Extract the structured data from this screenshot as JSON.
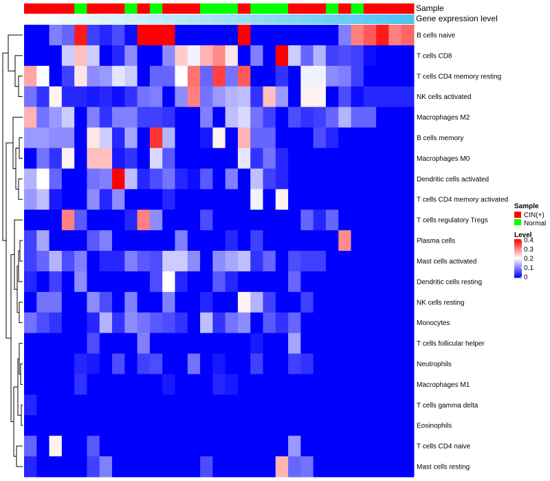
{
  "chart_data": {
    "type": "heatmap",
    "annotation_labels": [
      "Sample",
      "Gene expression level"
    ],
    "sample_groups": [
      "C",
      "C",
      "C",
      "C",
      "N",
      "C",
      "C",
      "C",
      "N",
      "C",
      "N",
      "C",
      "C",
      "C",
      "N",
      "N",
      "N",
      "C",
      "N",
      "N",
      "N",
      "C",
      "C",
      "C",
      "N",
      "C",
      "N",
      "C",
      "C",
      "C",
      "C"
    ],
    "expression_gradient": [
      "#ffffff",
      "#4dc3f2"
    ],
    "rows": [
      "B cells naive",
      "T cells CD8",
      "T cells CD4 memory resting",
      "NK cells activated",
      "Macrophages M2",
      "B cells memory",
      "Macrophages M0",
      "Dendritic cells activated",
      "T cells CD4 memory activated",
      "T cells regulatory  Tregs",
      "Plasma cells",
      "Mast cells activated",
      "Dendritic cells resting",
      "NK cells resting",
      "Monocytes",
      "T cells follicular helper",
      "Neutrophils",
      "Macrophages M1",
      "T cells gamma delta",
      "Eosinophils",
      "T cells CD4 naive",
      "Mast cells resting"
    ],
    "matrix": [
      [
        0.0,
        0.0,
        0.1,
        0.08,
        0.38,
        0.05,
        0.03,
        0.06,
        0.01,
        0.4,
        0.4,
        0.4,
        0.0,
        0.0,
        0.0,
        0.0,
        0.0,
        0.4,
        0.0,
        0.0,
        0.0,
        0.0,
        0.0,
        0.0,
        0.0,
        0.1,
        0.3,
        0.33,
        0.38,
        0.3,
        0.32
      ],
      [
        0.0,
        0.0,
        0.0,
        0.16,
        0.25,
        0.16,
        0.0,
        0.03,
        0.11,
        0.0,
        0.0,
        0.11,
        0.24,
        0.19,
        0.26,
        0.29,
        0.22,
        0.0,
        0.1,
        0.0,
        0.4,
        0.16,
        0.08,
        0.14,
        0.05,
        0.06,
        0.05,
        0.01,
        0.0,
        0.0,
        0.0
      ],
      [
        0.27,
        0.2,
        0.0,
        0.05,
        0.22,
        0.11,
        0.12,
        0.18,
        0.16,
        0.0,
        0.08,
        0.08,
        0.2,
        0.31,
        0.08,
        0.35,
        0.09,
        0.33,
        0.0,
        0.0,
        0.04,
        0.0,
        0.19,
        0.19,
        0.11,
        0.1,
        0.05,
        0.0,
        0.0,
        0.0,
        0.0
      ],
      [
        0.09,
        0.04,
        0.21,
        0.03,
        0.03,
        0.02,
        0.03,
        0.01,
        0.04,
        0.09,
        0.1,
        0.0,
        0.11,
        0.3,
        0.09,
        0.12,
        0.14,
        0.15,
        0.04,
        0.25,
        0.12,
        0.0,
        0.21,
        0.21,
        0.0,
        0.06,
        0.01,
        0.03,
        0.03,
        0.03,
        0.03
      ],
      [
        0.26,
        0.09,
        0.12,
        0.16,
        0.0,
        0.1,
        0.04,
        0.1,
        0.1,
        0.05,
        0.05,
        0.04,
        0.0,
        0.0,
        0.1,
        0.0,
        0.15,
        0.17,
        0.09,
        0.05,
        0.0,
        0.06,
        0.04,
        0.05,
        0.08,
        0.14,
        0.08,
        0.08,
        0.0,
        0.0,
        0.0
      ],
      [
        0.12,
        0.12,
        0.11,
        0.11,
        0.0,
        0.22,
        0.16,
        0.03,
        0.13,
        0.0,
        0.36,
        0.14,
        0.0,
        0.0,
        0.02,
        0.21,
        0.0,
        0.26,
        0.08,
        0.08,
        0.0,
        0.0,
        0.0,
        0.06,
        0.03,
        0.0,
        0.0,
        0.0,
        0.0,
        0.0,
        0.0
      ],
      [
        0.0,
        0.09,
        0.04,
        0.21,
        0.0,
        0.25,
        0.25,
        0.02,
        0.04,
        0.0,
        0.17,
        0.07,
        0.0,
        0.0,
        0.0,
        0.0,
        0.0,
        0.18,
        0.04,
        0.09,
        0.03,
        0.0,
        0.0,
        0.0,
        0.0,
        0.0,
        0.0,
        0.0,
        0.0,
        0.0,
        0.0
      ],
      [
        0.14,
        0.2,
        0.08,
        0.0,
        0.0,
        0.09,
        0.1,
        0.4,
        0.15,
        0.03,
        0.06,
        0.09,
        0.03,
        0.01,
        0.07,
        0.0,
        0.1,
        0.0,
        0.15,
        0.05,
        0.03,
        0.0,
        0.0,
        0.0,
        0.0,
        0.0,
        0.0,
        0.0,
        0.0,
        0.0,
        0.0
      ],
      [
        0.12,
        0.15,
        0.02,
        0.0,
        0.0,
        0.11,
        0.03,
        0.11,
        0.0,
        0.0,
        0.0,
        0.03,
        0.0,
        0.0,
        0.0,
        0.0,
        0.0,
        0.0,
        0.19,
        0.0,
        0.21,
        0.0,
        0.0,
        0.0,
        0.0,
        0.0,
        0.0,
        0.0,
        0.0,
        0.0,
        0.0
      ],
      [
        0.0,
        0.0,
        0.0,
        0.3,
        0.07,
        0.0,
        0.0,
        0.0,
        0.03,
        0.3,
        0.11,
        0.0,
        0.0,
        0.0,
        0.06,
        0.0,
        0.0,
        0.0,
        0.0,
        0.0,
        0.0,
        0.0,
        0.08,
        0.03,
        0.08,
        0.0,
        0.0,
        0.0,
        0.0,
        0.0,
        0.0
      ],
      [
        0.05,
        0.13,
        0.0,
        0.0,
        0.0,
        0.07,
        0.1,
        0.0,
        0.0,
        0.0,
        0.0,
        0.0,
        0.1,
        0.0,
        0.0,
        0.0,
        0.03,
        0.0,
        0.05,
        0.0,
        0.0,
        0.0,
        0.0,
        0.0,
        0.0,
        0.29,
        0.0,
        0.0,
        0.0,
        0.0,
        0.0
      ],
      [
        0.05,
        0.08,
        0.14,
        0.06,
        0.1,
        0.0,
        0.03,
        0.03,
        0.1,
        0.07,
        0.06,
        0.16,
        0.16,
        0.11,
        0.0,
        0.11,
        0.13,
        0.15,
        0.04,
        0.08,
        0.0,
        0.06,
        0.05,
        0.05,
        0.0,
        0.0,
        0.0,
        0.0,
        0.0,
        0.0,
        0.0
      ],
      [
        0.03,
        0.0,
        0.05,
        0.0,
        0.11,
        0.0,
        0.0,
        0.0,
        0.0,
        0.0,
        0.06,
        0.2,
        0.03,
        0.0,
        0.0,
        0.07,
        0.03,
        0.0,
        0.0,
        0.0,
        0.0,
        0.08,
        0.0,
        0.0,
        0.0,
        0.0,
        0.0,
        0.0,
        0.0,
        0.0,
        0.0
      ],
      [
        0.0,
        0.09,
        0.09,
        0.0,
        0.0,
        0.11,
        0.06,
        0.0,
        0.1,
        0.0,
        0.0,
        0.1,
        0.0,
        0.0,
        0.03,
        0.0,
        0.0,
        0.21,
        0.14,
        0.05,
        0.0,
        0.0,
        0.05,
        0.0,
        0.0,
        0.0,
        0.0,
        0.0,
        0.0,
        0.0,
        0.0
      ],
      [
        0.09,
        0.06,
        0.04,
        0.0,
        0.0,
        0.03,
        0.14,
        0.04,
        0.11,
        0.09,
        0.07,
        0.06,
        0.04,
        0.0,
        0.15,
        0.04,
        0.09,
        0.11,
        0.0,
        0.07,
        0.04,
        0.08,
        0.0,
        0.0,
        0.0,
        0.0,
        0.0,
        0.0,
        0.0,
        0.0,
        0.0
      ],
      [
        0.0,
        0.0,
        0.0,
        0.0,
        0.0,
        0.06,
        0.0,
        0.0,
        0.0,
        0.1,
        0.0,
        0.0,
        0.0,
        0.0,
        0.0,
        0.0,
        0.0,
        0.0,
        0.02,
        0.0,
        0.0,
        0.13,
        0.0,
        0.0,
        0.0,
        0.0,
        0.0,
        0.0,
        0.0,
        0.0,
        0.0
      ],
      [
        0.0,
        0.0,
        0.0,
        0.0,
        0.03,
        0.02,
        0.0,
        0.06,
        0.0,
        0.05,
        0.06,
        0.0,
        0.0,
        0.09,
        0.0,
        0.02,
        0.0,
        0.0,
        0.05,
        0.0,
        0.0,
        0.05,
        0.04,
        0.0,
        0.0,
        0.0,
        0.0,
        0.0,
        0.0,
        0.0,
        0.0
      ],
      [
        0.0,
        0.0,
        0.0,
        0.0,
        0.04,
        0.0,
        0.0,
        0.0,
        0.0,
        0.0,
        0.0,
        0.02,
        0.0,
        0.0,
        0.0,
        0.03,
        0.02,
        0.0,
        0.0,
        0.0,
        0.0,
        0.0,
        0.0,
        0.0,
        0.0,
        0.0,
        0.0,
        0.0,
        0.0,
        0.0,
        0.0
      ],
      [
        0.03,
        0.0,
        0.0,
        0.0,
        0.0,
        0.0,
        0.0,
        0.0,
        0.0,
        0.0,
        0.0,
        0.0,
        0.0,
        0.0,
        0.0,
        0.0,
        0.0,
        0.0,
        0.0,
        0.0,
        0.0,
        0.0,
        0.0,
        0.0,
        0.0,
        0.0,
        0.0,
        0.0,
        0.0,
        0.0,
        0.0
      ],
      [
        0.0,
        0.0,
        0.0,
        0.0,
        0.0,
        0.0,
        0.0,
        0.0,
        0.0,
        0.0,
        0.0,
        0.0,
        0.0,
        0.0,
        0.0,
        0.0,
        0.0,
        0.0,
        0.0,
        0.0,
        0.0,
        0.0,
        0.0,
        0.0,
        0.0,
        0.0,
        0.0,
        0.0,
        0.0,
        0.0,
        0.0
      ],
      [
        0.08,
        0.0,
        0.21,
        0.0,
        0.0,
        0.07,
        0.0,
        0.0,
        0.0,
        0.0,
        0.0,
        0.0,
        0.0,
        0.0,
        0.0,
        0.0,
        0.0,
        0.0,
        0.0,
        0.0,
        0.0,
        0.12,
        0.0,
        0.0,
        0.0,
        0.0,
        0.0,
        0.0,
        0.0,
        0.0,
        0.0
      ],
      [
        0.03,
        0.0,
        0.0,
        0.0,
        0.0,
        0.05,
        0.1,
        0.0,
        0.0,
        0.0,
        0.0,
        0.0,
        0.0,
        0.0,
        0.06,
        0.0,
        0.0,
        0.0,
        0.0,
        0.0,
        0.26,
        0.08,
        0.09,
        0.0,
        0.0,
        0.0,
        0.0,
        0.0,
        0.0,
        0.0,
        0.0
      ]
    ],
    "legend": {
      "sample_title": "Sample",
      "sample_entries": [
        {
          "label": "CIN(+)",
          "color": "#ff0000"
        },
        {
          "label": "Normal",
          "color": "#00ff00"
        }
      ],
      "level_title": "Level",
      "level_ticks": [
        "0.4",
        "0.3",
        "0.2",
        "0.1",
        "0"
      ],
      "level_range": [
        0,
        0.4
      ],
      "color_low": "#0000ff",
      "color_mid": "#ffffff",
      "color_high": "#ff0000"
    },
    "dendrogram": "row clustering"
  }
}
